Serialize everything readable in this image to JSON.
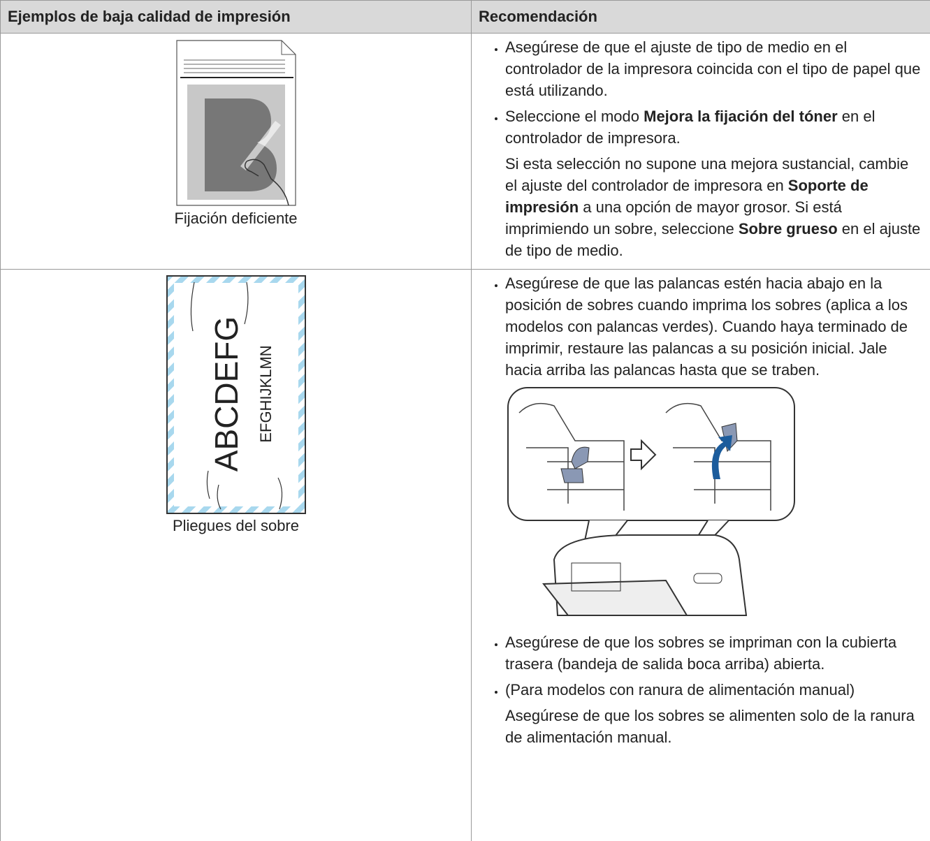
{
  "table": {
    "headers": [
      "Ejemplos de baja calidad de impresión",
      "Recomendación"
    ],
    "rows": [
      {
        "caption": "Fijación deficiente",
        "recommendations": [
          {
            "paragraphs": [
              [
                {
                  "text": "Asegúrese de que el ajuste de tipo de medio en el controlador de la impresora coincida con el tipo de papel que está utilizando."
                }
              ]
            ]
          },
          {
            "paragraphs": [
              [
                {
                  "text": "Seleccione el modo "
                },
                {
                  "text": "Mejora la fijación del tóner",
                  "bold": true
                },
                {
                  "text": " en el controlador de impresora."
                }
              ],
              [
                {
                  "text": "Si esta selección no supone una mejora sustancial, cambie el ajuste del controlador de impresora en "
                },
                {
                  "text": "Soporte de impresión",
                  "bold": true
                },
                {
                  "text": " a una opción de mayor grosor. Si está imprimiendo un sobre, seleccione "
                },
                {
                  "text": "Sobre grueso",
                  "bold": true
                },
                {
                  "text": " en el ajuste de tipo de medio."
                }
              ]
            ]
          }
        ]
      },
      {
        "caption": "Pliegues del sobre",
        "envelope_text": [
          "ABCDEFG",
          "EFGHIJKLMN"
        ],
        "recommendations": [
          {
            "paragraphs": [
              [
                {
                  "text": "Asegúrese de que las palancas estén hacia abajo en la posición de sobres cuando imprima los sobres (aplica a los modelos con palancas verdes). Cuando haya terminado de imprimir, restaure las palancas a su posición inicial. Jale hacia arriba las palancas hasta que se traben."
                }
              ]
            ]
          }
        ],
        "recommendations_after_figure": [
          {
            "paragraphs": [
              [
                {
                  "text": "Asegúrese de que los sobres se impriman con la cubierta trasera (bandeja de salida boca arriba) abierta."
                }
              ]
            ]
          },
          {
            "paragraphs": [
              [
                {
                  "text": "(Para modelos con ranura de alimentación manual)"
                }
              ],
              [
                {
                  "text": "Asegúrese de que los sobres se alimenten solo de la ranura de alimentación manual."
                }
              ]
            ]
          }
        ]
      }
    ]
  }
}
